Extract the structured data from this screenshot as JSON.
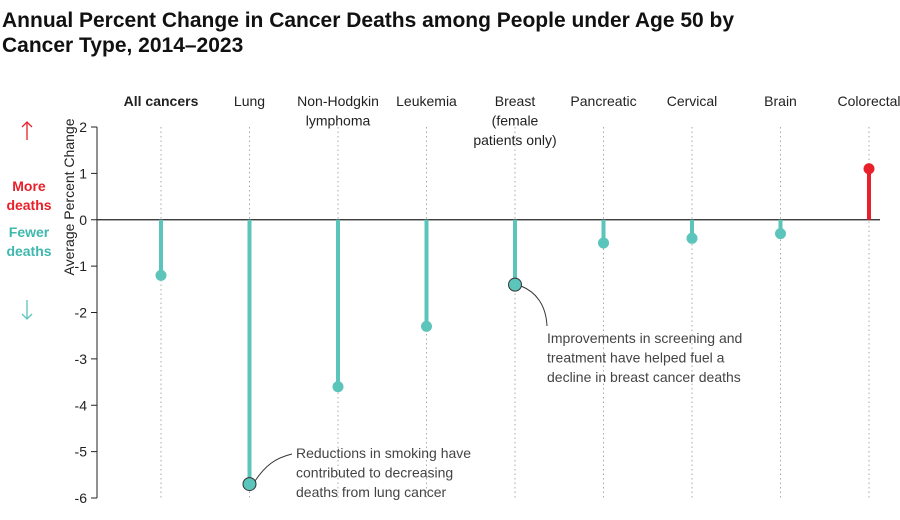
{
  "chart_data": {
    "type": "lollipop",
    "title": "Annual Percent Change in Cancer Deaths among People under Age 50 by\nCancer Type, 2014–2023",
    "y_axis_label": "Average Percent Change",
    "direction_labels": {
      "up": "More\ndeaths",
      "down": "Fewer\ndeaths"
    },
    "categories": [
      "All cancers",
      "Lung",
      "Non-Hodgkin\nlymphoma",
      "Leukemia",
      "Breast\n(female\npatients only)",
      "Pancreatic",
      "Cervical",
      "Brain",
      "Colorectal"
    ],
    "values": [
      -1.2,
      -5.7,
      -3.6,
      -2.3,
      -1.4,
      -0.5,
      -0.4,
      -0.3,
      1.1
    ],
    "colors": [
      "#5bc4bb",
      "#5bc4bb",
      "#5bc4bb",
      "#5bc4bb",
      "#5bc4bb",
      "#5bc4bb",
      "#5bc4bb",
      "#5bc4bb",
      "#e8202a"
    ],
    "ylim": [
      -6,
      2
    ],
    "yticks": [
      2,
      1,
      0,
      -1,
      -2,
      -3,
      -4,
      -5,
      -6
    ],
    "annotations": [
      "Improvements in screening and\ntreatment have helped fuel a\ndecline in breast cancer deaths",
      "Reductions in smoking have\ncontributed to decreasing\ndeaths from lung cancer"
    ]
  }
}
